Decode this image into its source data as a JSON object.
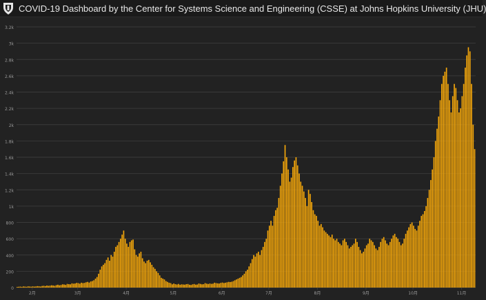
{
  "header": {
    "title": "COVID-19 Dashboard by the Center for Systems Science and Engineering (CSSE) at Johns Hopkins University (JHU)",
    "logo_icon": "jhu-shield-icon"
  },
  "colors": {
    "background": "#222222",
    "bar": "#f5a70a",
    "grid": "#3a3a3a",
    "tick_text": "#9a9a9a"
  },
  "chart_data": {
    "type": "bar",
    "title": "",
    "xlabel": "",
    "ylabel": "",
    "ylim": [
      0,
      3200
    ],
    "grid": true,
    "y_ticks": [
      {
        "value": 0,
        "label": "0"
      },
      {
        "value": 200,
        "label": "200"
      },
      {
        "value": 400,
        "label": "400"
      },
      {
        "value": 600,
        "label": "600"
      },
      {
        "value": 800,
        "label": "800"
      },
      {
        "value": 1000,
        "label": "1k"
      },
      {
        "value": 1200,
        "label": "1.2k"
      },
      {
        "value": 1400,
        "label": "1.4k"
      },
      {
        "value": 1600,
        "label": "1.6k"
      },
      {
        "value": 1800,
        "label": "1.8k"
      },
      {
        "value": 2000,
        "label": "2k"
      },
      {
        "value": 2200,
        "label": "2.2k"
      },
      {
        "value": 2400,
        "label": "2.4k"
      },
      {
        "value": 2600,
        "label": "2.6k"
      },
      {
        "value": 2800,
        "label": "2.8k"
      },
      {
        "value": 3000,
        "label": "3k"
      },
      {
        "value": 3200,
        "label": "3.2k"
      }
    ],
    "x_ticks": [
      {
        "index": 10,
        "label": "2月"
      },
      {
        "index": 39,
        "label": "3月"
      },
      {
        "index": 70,
        "label": "4月"
      },
      {
        "index": 100,
        "label": "5月"
      },
      {
        "index": 131,
        "label": "6月"
      },
      {
        "index": 161,
        "label": "7月"
      },
      {
        "index": 192,
        "label": "8月"
      },
      {
        "index": 223,
        "label": "9月"
      },
      {
        "index": 253,
        "label": "10月"
      },
      {
        "index": 284,
        "label": "11月"
      }
    ],
    "values": [
      8,
      10,
      12,
      9,
      14,
      12,
      10,
      15,
      13,
      11,
      15,
      12,
      14,
      18,
      16,
      13,
      20,
      22,
      18,
      25,
      21,
      24,
      28,
      26,
      22,
      30,
      35,
      28,
      32,
      40,
      38,
      33,
      45,
      42,
      40,
      52,
      48,
      50,
      58,
      55,
      48,
      60,
      55,
      58,
      65,
      70,
      62,
      75,
      80,
      90,
      110,
      130,
      170,
      220,
      260,
      280,
      300,
      340,
      370,
      330,
      400,
      380,
      440,
      500,
      520,
      560,
      600,
      650,
      700,
      600,
      540,
      500,
      560,
      580,
      590,
      470,
      400,
      380,
      420,
      440,
      360,
      320,
      300,
      330,
      340,
      310,
      280,
      250,
      230,
      200,
      180,
      150,
      120,
      110,
      100,
      80,
      70,
      60,
      55,
      40,
      50,
      42,
      38,
      45,
      35,
      40,
      38,
      36,
      42,
      44,
      35,
      32,
      40,
      44,
      36,
      38,
      50,
      45,
      40,
      42,
      55,
      48,
      44,
      50,
      46,
      48,
      60,
      55,
      52,
      50,
      58,
      62,
      56,
      60,
      65,
      70,
      68,
      72,
      80,
      90,
      100,
      110,
      120,
      130,
      150,
      170,
      200,
      220,
      260,
      300,
      350,
      400,
      380,
      420,
      440,
      400,
      460,
      500,
      560,
      600,
      700,
      760,
      820,
      760,
      880,
      950,
      980,
      1100,
      1250,
      1400,
      1550,
      1750,
      1600,
      1450,
      1300,
      1350,
      1480,
      1560,
      1600,
      1500,
      1400,
      1300,
      1250,
      1180,
      1100,
      1000,
      1200,
      1150,
      1050,
      950,
      900,
      880,
      820,
      760,
      780,
      740,
      700,
      680,
      660,
      640,
      620,
      650,
      600,
      580,
      600,
      560,
      540,
      520,
      580,
      600,
      560,
      520,
      480,
      500,
      520,
      540,
      600,
      560,
      500,
      460,
      420,
      440,
      480,
      520,
      540,
      600,
      580,
      560,
      520,
      480,
      460,
      500,
      560,
      600,
      620,
      580,
      540,
      520,
      560,
      600,
      640,
      660,
      620,
      600,
      560,
      520,
      540,
      600,
      660,
      700,
      740,
      780,
      800,
      760,
      720,
      700,
      760,
      820,
      880,
      900,
      940,
      1000,
      1100,
      1200,
      1320,
      1450,
      1600,
      1800,
      1950,
      2100,
      2300,
      2500,
      2600,
      2650,
      2700,
      2500,
      2300,
      2150,
      2350,
      2500,
      2450,
      2300,
      2150,
      2200,
      2350,
      2500,
      2700,
      2850,
      2950,
      2900,
      2500,
      2000,
      1700
    ]
  }
}
